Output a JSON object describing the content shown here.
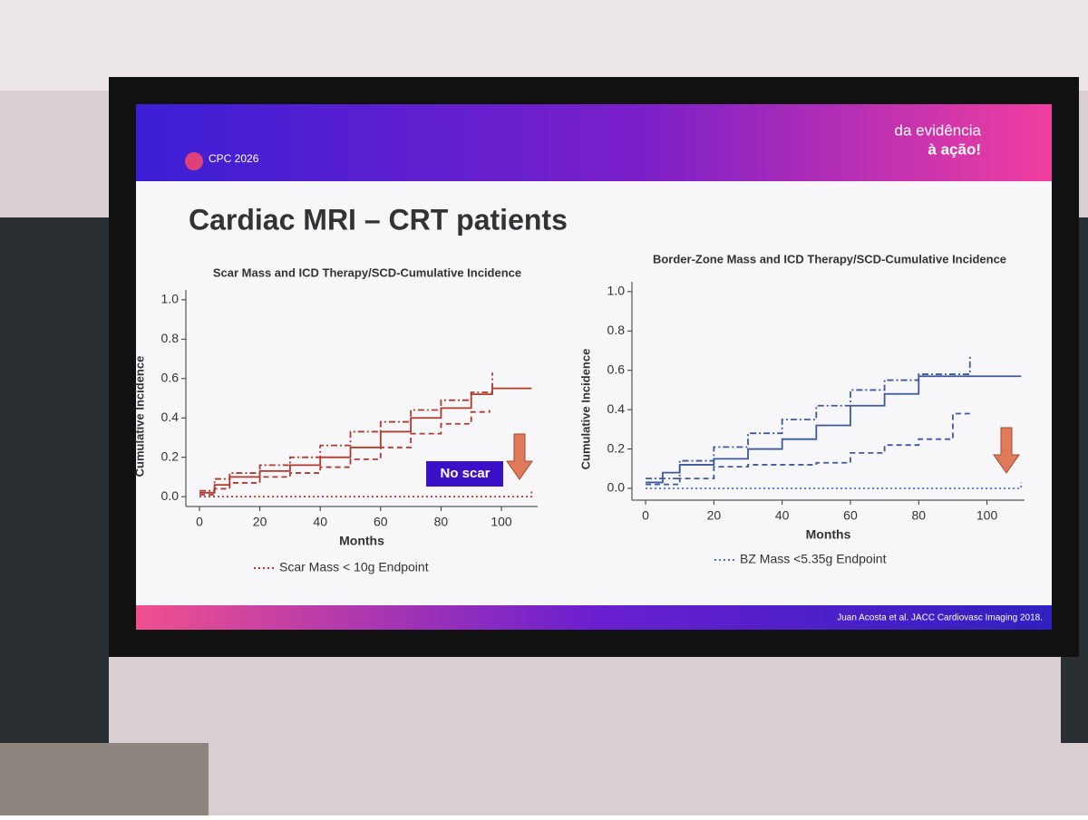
{
  "slide": {
    "logo": "CPC 2026",
    "tagline": [
      "da evidência",
      "à ação!"
    ],
    "title": "Cardiac MRI – CRT patients",
    "citation": "Juan Acosta et al. JACC Cardiovasc Imaging 2018."
  },
  "chart_data": [
    {
      "type": "line",
      "step": true,
      "title": "Scar Mass and ICD Therapy/SCD-Cumulative Incidence",
      "x_label": "Months",
      "y_label": "Cumulative Incidence",
      "xlim": [
        -4.5,
        112
      ],
      "xticks": [
        0,
        20,
        40,
        60,
        80,
        100
      ],
      "ylim": [
        -0.05,
        1.05
      ],
      "yticks": [
        {
          "value": 0,
          "label": "0.0"
        },
        0.2,
        0.4,
        0.6,
        0.8,
        {
          "value": 1,
          "label": "1.0"
        }
      ],
      "annotation": "No scar",
      "series": [
        {
          "color": "#b03a2e",
          "dash": "solid",
          "x": [
            0,
            5,
            10,
            20,
            30,
            40,
            50,
            60,
            70,
            80,
            90,
            97,
            110
          ],
          "values": [
            0.02,
            0.06,
            0.1,
            0.13,
            0.16,
            0.2,
            0.25,
            0.33,
            0.4,
            0.45,
            0.52,
            0.55,
            0.55
          ]
        },
        {
          "color": "#b03a2e",
          "dash": "dashed",
          "x": [
            0,
            5,
            10,
            20,
            30,
            40,
            50,
            60,
            70,
            80,
            90,
            96
          ],
          "values": [
            0.01,
            0.04,
            0.07,
            0.1,
            0.12,
            0.15,
            0.19,
            0.25,
            0.32,
            0.37,
            0.43,
            0.44
          ]
        },
        {
          "color": "#b03a2e",
          "dash": "dashdot",
          "x": [
            0,
            5,
            10,
            20,
            30,
            40,
            50,
            60,
            70,
            80,
            90,
            97,
            97
          ],
          "values": [
            0.03,
            0.09,
            0.12,
            0.16,
            0.2,
            0.26,
            0.33,
            0.38,
            0.44,
            0.49,
            0.53,
            0.56,
            0.63
          ]
        },
        {
          "name": "Scar Mass < 10g Endpoint",
          "color": "#b03a2e",
          "dash": "dotted",
          "x": [
            0,
            110
          ],
          "values": [
            0.0,
            0.03
          ]
        }
      ]
    },
    {
      "type": "line",
      "step": true,
      "title": "Border-Zone Mass and ICD Therapy/SCD-Cumulative Incidence",
      "x_label": "Months",
      "y_label": "Cumulative Incidence",
      "xlim": [
        -4,
        111
      ],
      "xticks": [
        0,
        20,
        40,
        60,
        80,
        100
      ],
      "ylim": [
        -0.06,
        1.05
      ],
      "yticks": [
        {
          "value": 0,
          "label": "0.0"
        },
        0.2,
        0.4,
        0.6,
        0.8,
        {
          "value": 1,
          "label": "1.0"
        }
      ],
      "series": [
        {
          "color": "#3d5a9c",
          "dash": "solid",
          "x": [
            0,
            5,
            10,
            20,
            30,
            40,
            50,
            60,
            70,
            80,
            90,
            110
          ],
          "values": [
            0.03,
            0.08,
            0.12,
            0.15,
            0.2,
            0.25,
            0.32,
            0.42,
            0.48,
            0.57,
            0.57,
            0.57
          ]
        },
        {
          "color": "#3d5a9c",
          "dash": "dashed",
          "x": [
            0,
            10,
            20,
            30,
            40,
            50,
            60,
            70,
            80,
            90,
            95
          ],
          "values": [
            0.02,
            0.05,
            0.11,
            0.12,
            0.12,
            0.13,
            0.18,
            0.22,
            0.25,
            0.38,
            0.38
          ]
        },
        {
          "color": "#3d5a9c",
          "dash": "dashdot",
          "x": [
            0,
            10,
            20,
            30,
            40,
            50,
            60,
            70,
            80,
            95,
            95
          ],
          "values": [
            0.05,
            0.14,
            0.21,
            0.28,
            0.35,
            0.42,
            0.5,
            0.55,
            0.58,
            0.58,
            0.68
          ]
        },
        {
          "name": "BZ Mass <5.35g Endpoint",
          "color": "#4a6fd0",
          "dash": "dotted",
          "x": [
            0,
            110
          ],
          "values": [
            0.0,
            0.03
          ]
        }
      ]
    }
  ]
}
